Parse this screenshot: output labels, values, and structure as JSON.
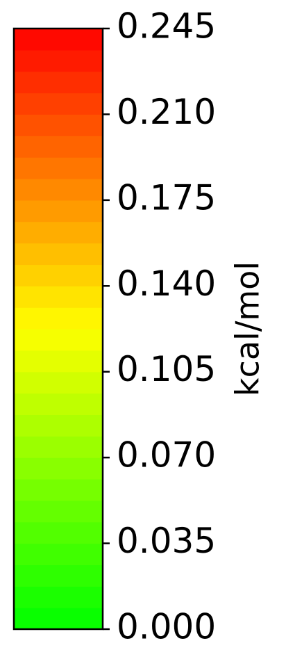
{
  "chart_data": {
    "type": "colorbar",
    "orientation": "vertical",
    "label": "kcal/mol",
    "vmin": 0.0,
    "vmax": 0.245,
    "levels": 28,
    "colors": {
      "low": "#00ff00",
      "mid": "#ffff00",
      "high": "#ff0000"
    },
    "ticks": [
      {
        "value": 0.0,
        "label": "0.000"
      },
      {
        "value": 0.035,
        "label": "0.035"
      },
      {
        "value": 0.07,
        "label": "0.070"
      },
      {
        "value": 0.105,
        "label": "0.105"
      },
      {
        "value": 0.14,
        "label": "0.140"
      },
      {
        "value": 0.175,
        "label": "0.175"
      },
      {
        "value": 0.21,
        "label": "0.210"
      },
      {
        "value": 0.245,
        "label": "0.245"
      }
    ]
  }
}
